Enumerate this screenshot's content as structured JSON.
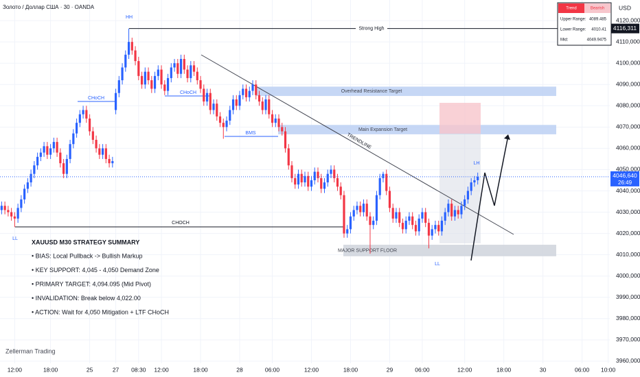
{
  "header": {
    "symbol": "Золото / Доллар США · 30 · OANDA",
    "currency": "USD",
    "watermark": "Zellerman Trading"
  },
  "chart_data": {
    "type": "candlestick",
    "x": [
      -4,
      -3,
      -2,
      -1,
      0,
      1,
      2,
      3,
      4,
      5,
      6,
      7,
      8,
      9,
      10,
      11,
      12,
      13,
      14,
      15,
      16,
      17,
      18,
      19,
      20,
      21,
      22,
      23,
      24,
      25,
      26,
      27,
      28,
      29,
      30,
      31,
      32,
      33,
      34,
      35,
      36,
      37,
      38,
      39,
      40,
      41,
      42,
      43,
      44,
      45,
      46,
      47,
      48,
      49,
      50,
      51,
      52,
      53,
      54,
      55,
      56,
      57,
      58,
      59,
      60,
      61,
      62,
      63,
      64,
      65,
      66,
      67,
      68,
      69,
      70,
      71,
      72,
      73,
      74,
      75,
      76,
      77,
      78,
      79,
      80,
      81,
      82,
      83,
      84,
      85,
      86,
      87,
      88,
      89,
      90,
      91,
      92,
      93,
      94,
      95,
      96,
      97,
      98,
      99,
      100,
      101,
      102,
      103,
      104,
      105,
      106,
      107,
      108,
      109,
      110,
      111,
      112,
      113,
      114,
      115,
      116,
      117,
      118,
      119,
      120,
      121,
      122,
      123,
      124,
      125,
      126,
      127,
      128,
      129,
      130,
      131,
      132,
      133,
      134,
      135,
      136,
      137,
      138,
      139,
      140,
      141,
      142
    ],
    "open": [
      4031,
      4033,
      4031,
      4030,
      4028,
      4027,
      4032,
      4036,
      4041,
      4044,
      4048,
      4052,
      4056,
      4058,
      4061,
      4057,
      4060,
      4063,
      4058,
      4053,
      4048,
      4055,
      4062,
      4067,
      4072,
      4076,
      4078,
      4074,
      4068,
      4064,
      4060,
      4057,
      4060,
      4055,
      4053,
      4078,
      4086,
      4092,
      4098,
      4104,
      4110,
      4106,
      4101,
      4094,
      4090,
      4096,
      4092,
      4088,
      4094,
      4097,
      4090,
      4087,
      4093,
      4098,
      4100,
      4095,
      4102,
      4097,
      4093,
      4099,
      4096,
      4092,
      4088,
      4082,
      4086,
      4078,
      4081,
      4075,
      4072,
      4070,
      4073,
      4078,
      4083,
      4080,
      4085,
      4088,
      4084,
      4087,
      4090,
      4085,
      4082,
      4078,
      4083,
      4076,
      4072,
      4074,
      4070,
      4068,
      4060,
      4052,
      4046,
      4043,
      4048,
      4044,
      4047,
      4042,
      4045,
      4049,
      4046,
      4041,
      4044,
      4048,
      4050,
      4046,
      4042,
      4038,
      4020,
      4022,
      4028,
      4031,
      4033,
      4030,
      4034,
      4028,
      4024,
      4026,
      4038,
      4046,
      4048,
      4040,
      4032,
      4027,
      4030,
      4025,
      4022,
      4026,
      4028,
      4024,
      4021,
      4027,
      4030,
      4025,
      4019,
      4022,
      4024,
      4021,
      4026,
      4030,
      4034,
      4028,
      4031,
      4029,
      4033,
      4036,
      4040,
      4044,
      4045
    ],
    "high": [
      4035,
      4035,
      4033,
      4032,
      4030,
      4034,
      4038,
      4043,
      4046,
      4050,
      4054,
      4058,
      4060,
      4063,
      4063,
      4062,
      4065,
      4065,
      4060,
      4055,
      4057,
      4064,
      4069,
      4074,
      4078,
      4080,
      4080,
      4076,
      4070,
      4066,
      4062,
      4062,
      4062,
      4057,
      4056,
      4088,
      4094,
      4100,
      4106,
      4116.3,
      4112,
      4108,
      4103,
      4096,
      4098,
      4098,
      4094,
      4096,
      4099,
      4099,
      4092,
      4095,
      4100,
      4102,
      4102,
      4104,
      4104,
      4099,
      4101,
      4101,
      4098,
      4094,
      4090,
      4088,
      4088,
      4083,
      4083,
      4077,
      4074,
      4075,
      4080,
      4085,
      4085,
      4087,
      4090,
      4090,
      4089,
      4092,
      4092,
      4087,
      4084,
      4085,
      4085,
      4078,
      4076,
      4076,
      4072,
      4070,
      4062,
      4054,
      4048,
      4050,
      4050,
      4049,
      4049,
      4047,
      4051,
      4051,
      4048,
      4046,
      4050,
      4052,
      4052,
      4048,
      4044,
      4040,
      4024,
      4030,
      4033,
      4035,
      4035,
      4036,
      4036,
      4030,
      4028,
      4040,
      4048,
      4049,
      4050,
      4042,
      4034,
      4032,
      4032,
      4027,
      4028,
      4030,
      4030,
      4026,
      4029,
      4032,
      4032,
      4027,
      4024,
      4026,
      4026,
      4028,
      4032,
      4036,
      4036,
      4033,
      4033,
      4035,
      4038,
      4042,
      4046,
      4047,
      4048.6
    ],
    "low": [
      4029,
      4029,
      4028,
      4026,
      4023,
      4025,
      4030,
      4034,
      4039,
      4042,
      4046,
      4050,
      4054,
      4056,
      4055,
      4055,
      4058,
      4056,
      4051,
      4046,
      4046,
      4053,
      4060,
      4065,
      4070,
      4074,
      4072,
      4066,
      4062,
      4058,
      4055,
      4055,
      4053,
      4051,
      4051,
      4076,
      4084,
      4090,
      4096,
      4102,
      4104,
      4099,
      4092,
      4088,
      4088,
      4090,
      4086,
      4086,
      4092,
      4088,
      4085,
      4085,
      4091,
      4096,
      4093,
      4093,
      4095,
      4091,
      4091,
      4094,
      4090,
      4086,
      4080,
      4080,
      4076,
      4076,
      4073,
      4070,
      4064.5,
      4068,
      4071,
      4076,
      4078,
      4078,
      4083,
      4082,
      4082,
      4085,
      4083,
      4080,
      4076,
      4076,
      4074,
      4070,
      4070,
      4068,
      4066,
      4058,
      4050,
      4044,
      4041,
      4041,
      4042,
      4042,
      4040,
      4040,
      4043,
      4044,
      4039,
      4039,
      4042,
      4046,
      4044,
      4040,
      4036,
      4018,
      4018,
      4020,
      4026,
      4029,
      4028,
      4028,
      4026,
      4010.5,
      4022,
      4024,
      4036,
      4044,
      4038,
      4030,
      4025,
      4025,
      4023,
      4020,
      4020,
      4024,
      4022,
      4019,
      4019,
      4025,
      4023,
      4013,
      4017,
      4020,
      4019,
      4019,
      4024,
      4028,
      4026,
      4026,
      4027,
      4027,
      4031,
      4034,
      4038,
      4042,
      4043
    ],
    "close": [
      4033,
      4031,
      4030,
      4028,
      4027,
      4032,
      4036,
      4041,
      4044,
      4048,
      4052,
      4056,
      4058,
      4061,
      4057,
      4060,
      4063,
      4058,
      4053,
      4048,
      4055,
      4062,
      4067,
      4072,
      4076,
      4078,
      4074,
      4068,
      4064,
      4060,
      4057,
      4060,
      4055,
      4053,
      4054,
      4086,
      4092,
      4098,
      4104,
      4110,
      4106,
      4101,
      4094,
      4090,
      4096,
      4092,
      4088,
      4094,
      4097,
      4090,
      4087,
      4093,
      4098,
      4100,
      4095,
      4102,
      4097,
      4093,
      4099,
      4096,
      4092,
      4088,
      4082,
      4086,
      4078,
      4081,
      4075,
      4072,
      4070,
      4073,
      4078,
      4083,
      4080,
      4085,
      4088,
      4084,
      4087,
      4090,
      4085,
      4082,
      4078,
      4083,
      4076,
      4072,
      4074,
      4070,
      4068,
      4060,
      4052,
      4046,
      4043,
      4048,
      4044,
      4047,
      4042,
      4045,
      4049,
      4046,
      4041,
      4044,
      4048,
      4050,
      4046,
      4042,
      4038,
      4020,
      4022,
      4028,
      4031,
      4033,
      4030,
      4034,
      4028,
      4024,
      4026,
      4038,
      4046,
      4048,
      4040,
      4032,
      4027,
      4030,
      4025,
      4022,
      4026,
      4028,
      4024,
      4021,
      4027,
      4030,
      4025,
      4019,
      4022,
      4024,
      4021,
      4026,
      4030,
      4034,
      4028,
      4031,
      4029,
      4033,
      4036,
      4040,
      4044,
      4045,
      4046.64
    ],
    "up_color": "#2962ff",
    "down_color": "#f23645",
    "grid": true,
    "xlim": [
      -4.5,
      182.5
    ],
    "xticks": [
      {
        "value": 0,
        "label": "12:00"
      },
      {
        "value": 11,
        "label": "18:00"
      },
      {
        "value": 23,
        "label": "25"
      },
      {
        "value": 31,
        "label": "27"
      },
      {
        "value": 38,
        "label": "08:30"
      },
      {
        "value": 45,
        "label": "12:00"
      },
      {
        "value": 57,
        "label": "18:00"
      },
      {
        "value": 69,
        "label": "28"
      },
      {
        "value": 79,
        "label": "06:00"
      },
      {
        "value": 91,
        "label": "12:00"
      },
      {
        "value": 103,
        "label": "18:00"
      },
      {
        "value": 115,
        "label": "29"
      },
      {
        "value": 125,
        "label": "06:00"
      },
      {
        "value": 138,
        "label": "12:00"
      },
      {
        "value": 150,
        "label": "18:00"
      },
      {
        "value": 162,
        "label": "30"
      },
      {
        "value": 174,
        "label": "06:00"
      },
      {
        "value": 182,
        "label": "10:00"
      }
    ],
    "ylim": [
      3959,
      4129.7
    ],
    "yticks": [
      {
        "value": 3960,
        "label": "3960,000"
      },
      {
        "value": 3970,
        "label": "3970,000"
      },
      {
        "value": 3980,
        "label": "3980,000"
      },
      {
        "value": 3990,
        "label": "3990,000"
      },
      {
        "value": 4000,
        "label": "4000,000"
      },
      {
        "value": 4010,
        "label": "4010,000"
      },
      {
        "value": 4020,
        "label": "4020,000"
      },
      {
        "value": 4030,
        "label": "4030,000"
      },
      {
        "value": 4040,
        "label": "4040,000"
      },
      {
        "value": 4050,
        "label": "4050,000"
      },
      {
        "value": 4060,
        "label": "4060,000"
      },
      {
        "value": 4070,
        "label": "4070,000"
      },
      {
        "value": 4080,
        "label": "4080,000"
      },
      {
        "value": 4090,
        "label": "4090,000"
      },
      {
        "value": 4100,
        "label": "4100,000"
      },
      {
        "value": 4110,
        "label": "4110,000"
      },
      {
        "value": 4120,
        "label": "4120,000"
      }
    ],
    "last_price": {
      "value": 4046.64,
      "label": "4046,640",
      "countdown": "26:49"
    },
    "strong_high": {
      "name": "Strong High",
      "value": 4116.311,
      "label": "4116,311"
    },
    "zones": [
      {
        "name": "Overhead Resistance Target",
        "top": 4089,
        "bottom": 4084.6
      },
      {
        "name": "Main Expansion Target",
        "top": 4071,
        "bottom": 4066.6
      },
      {
        "name": "MAJOR SUPPORT FLOOR",
        "top": 4014.7,
        "bottom": 4009.3
      }
    ],
    "annotations": [
      "HH",
      "LL",
      "CHoCH",
      "CHoCH",
      "BMS",
      "CHOCH",
      "TRENDLINE",
      "LH",
      "LL"
    ]
  },
  "summary": {
    "title": "XAUUSD M30 STRATEGY SUMMARY",
    "items": [
      "• BIAS: Local Pullback -> Bullish Markup",
      "• KEY SUPPORT: 4,045 - 4,050 Demand Zone",
      "• PRIMARY TARGET: 4,094.095 (Mid Pivot)",
      "• INVALIDATION: Break below 4,022.00",
      "• ACTION: Wait for 4,050 Mitigation + LTF CHoCH"
    ]
  },
  "info_table": {
    "header": [
      "Trend",
      "Bearish"
    ],
    "rows": [
      [
        "Upper Range:",
        "4089.485"
      ],
      [
        "Lower Range:",
        "4010.41"
      ],
      [
        "Mid:",
        "4049.9475"
      ]
    ]
  }
}
